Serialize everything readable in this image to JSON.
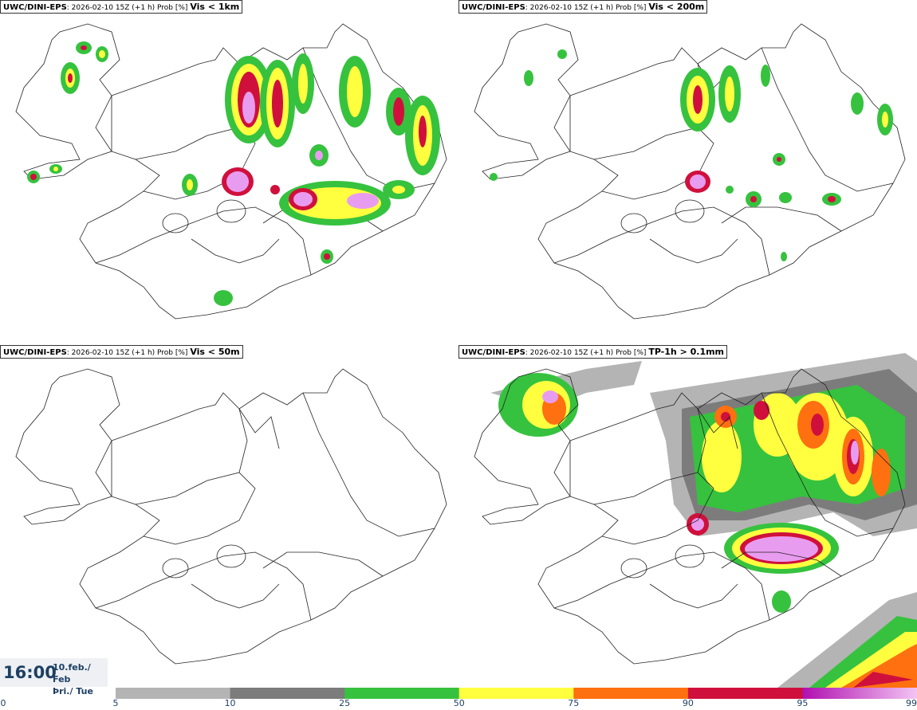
{
  "panels": [
    {
      "model": "UWC/DINI-EPS",
      "meta": ": 2026-02-10 15Z (+1 h) Prob [%] ",
      "variable": "Vis < 1km"
    },
    {
      "model": "UWC/DINI-EPS",
      "meta": ": 2026-02-10 15Z (+1 h) Prob [%] ",
      "variable": "Vis < 200m"
    },
    {
      "model": "UWC/DINI-EPS",
      "meta": ": 2026-02-10 15Z (+1 h) Prob [%] ",
      "variable": "Vis < 50m"
    },
    {
      "model": "UWC/DINI-EPS",
      "meta": ": 2026-02-10 15Z (+1 h) Prob [%] ",
      "variable": "TP-1h > 0.1mm"
    }
  ],
  "time": {
    "hour": "16:00",
    "date_line1": "10.feb./ Feb",
    "date_line2": "Þri./ Tue"
  },
  "colorbar": {
    "ticks": [
      "0",
      "5",
      "10",
      "25",
      "50",
      "75",
      "90",
      "95",
      "99"
    ],
    "colors": [
      "#ffffff",
      "#b4b4b4",
      "#7c7c7c",
      "#36c23e",
      "#ffff40",
      "#ff7010",
      "#d0103c",
      "#e040d0"
    ]
  }
}
